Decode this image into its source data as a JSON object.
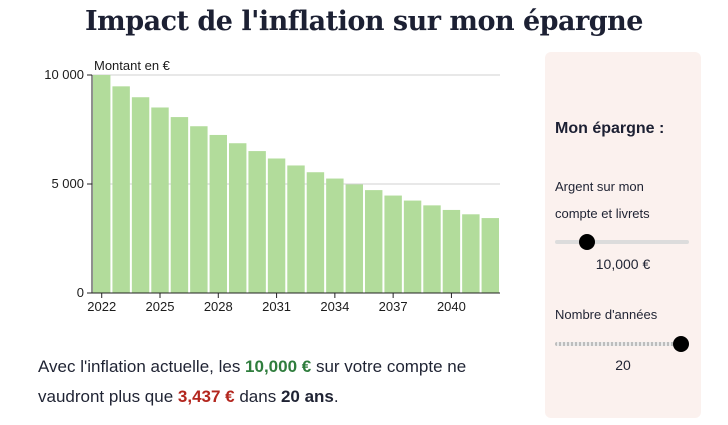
{
  "title": "Impact de l'inflation sur mon épargne",
  "chart_data": {
    "type": "bar",
    "ylabel": "Montant en €",
    "ylim": [
      0,
      10000
    ],
    "yticks": [
      0,
      5000,
      10000
    ],
    "ytick_labels": [
      "0",
      "5 000",
      "10 000"
    ],
    "xtick_labels": [
      "2022",
      "2025",
      "2028",
      "2031",
      "2034",
      "2037",
      "2040"
    ],
    "xtick_years": [
      2022,
      2025,
      2028,
      2031,
      2034,
      2037,
      2040
    ],
    "categories": [
      2022,
      2023,
      2024,
      2025,
      2026,
      2027,
      2028,
      2029,
      2030,
      2031,
      2032,
      2033,
      2034,
      2035,
      2036,
      2037,
      2038,
      2039,
      2040,
      2041,
      2042
    ],
    "values": [
      10000,
      9480,
      8980,
      8510,
      8070,
      7650,
      7250,
      6870,
      6510,
      6170,
      5850,
      5540,
      5250,
      4980,
      4720,
      4470,
      4240,
      4020,
      3810,
      3610,
      3437
    ],
    "bar_color": "#b2dc9b",
    "grid": true
  },
  "summary": {
    "part1": "Avec l'inflation actuelle, les ",
    "amount": "10,000 €",
    "part2": " sur votre compte ne vaudront plus que ",
    "final_amount": "3,437 €",
    "part3": " dans ",
    "years": "20 ans",
    "part4": "."
  },
  "panel": {
    "title": "Mon épargne :",
    "savings_label": "Argent sur mon compte et livrets",
    "savings_value": "10,000 €",
    "savings_level": 0.2,
    "years_label": "Nombre d'années",
    "years_value": "20",
    "years_level": 1.0
  },
  "colors": {
    "green_text": "#2f7d3d",
    "red_text": "#b3261e",
    "panel_bg": "#fbf1ee"
  }
}
